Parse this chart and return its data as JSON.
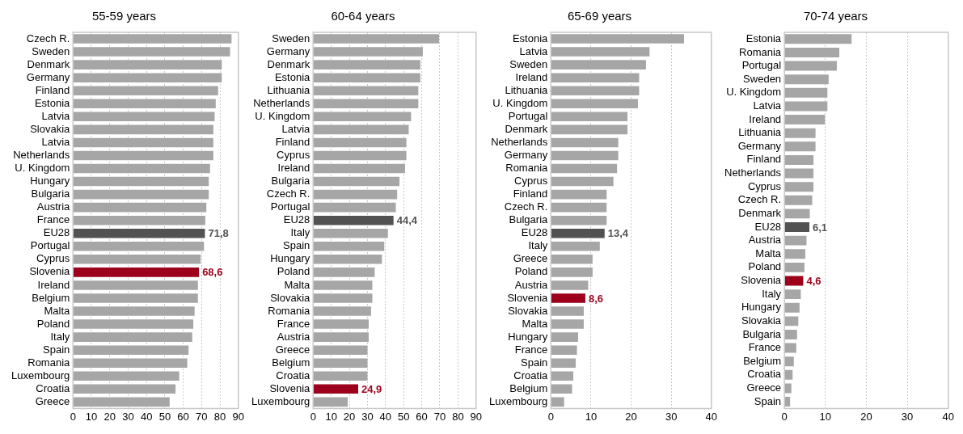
{
  "chart_data": [
    {
      "type": "bar",
      "orientation": "horizontal",
      "title": "55-59 years",
      "grid": "x",
      "xlim": [
        0,
        90
      ],
      "xticks": [
        0,
        10,
        20,
        30,
        40,
        50,
        60,
        70,
        80,
        90
      ],
      "categories": [
        "Czech R.",
        "Sweden",
        "Denmark",
        "Germany",
        "Finland",
        "Estonia",
        "Latvia",
        "Slovakia",
        "Latvia",
        "Netherlands",
        "U. Kingdom",
        "Hungary",
        "Bulgaria",
        "Austria",
        "France",
        "EU28",
        "Portugal",
        "Cyprus",
        "Slovenia",
        "Ireland",
        "Belgium",
        "Malta",
        "Poland",
        "Italy",
        "Spain",
        "Romania",
        "Luxembourg",
        "Croatia",
        "Greece"
      ],
      "values": [
        86.3,
        85.5,
        81.0,
        81.0,
        79.0,
        77.7,
        77.1,
        76.4,
        76.4,
        76.4,
        74.6,
        73.9,
        73.9,
        72.6,
        72.0,
        71.8,
        71.3,
        69.5,
        68.6,
        68.0,
        68.0,
        66.2,
        65.5,
        64.9,
        62.9,
        62.2,
        57.8,
        55.8,
        52.6
      ],
      "colors": [
        "#a6a6a6",
        "#a6a6a6",
        "#a6a6a6",
        "#a6a6a6",
        "#a6a6a6",
        "#a6a6a6",
        "#a6a6a6",
        "#a6a6a6",
        "#a6a6a6",
        "#a6a6a6",
        "#a6a6a6",
        "#a6a6a6",
        "#a6a6a6",
        "#a6a6a6",
        "#a6a6a6",
        "#525252",
        "#a6a6a6",
        "#a6a6a6",
        "#9c001a",
        "#a6a6a6",
        "#a6a6a6",
        "#a6a6a6",
        "#a6a6a6",
        "#a6a6a6",
        "#a6a6a6",
        "#a6a6a6",
        "#a6a6a6",
        "#a6a6a6",
        "#a6a6a6"
      ],
      "value_labels": [
        null,
        null,
        null,
        null,
        null,
        null,
        null,
        null,
        null,
        null,
        null,
        null,
        null,
        null,
        null,
        "71,8",
        null,
        null,
        "68,6",
        null,
        null,
        null,
        null,
        null,
        null,
        null,
        null,
        null,
        null
      ]
    },
    {
      "type": "bar",
      "orientation": "horizontal",
      "title": "60-64 years",
      "grid": "x",
      "xlim": [
        0,
        90
      ],
      "xticks": [
        0,
        10,
        20,
        30,
        40,
        50,
        60,
        70,
        80,
        90
      ],
      "categories": [
        "Sweden",
        "Germany",
        "Denmark",
        "Estonia",
        "Lithuania",
        "Netherlands",
        "U. Kingdom",
        "Latvia",
        "Finland",
        "Cyprus",
        "Ireland",
        "Bulgaria",
        "Czech R.",
        "Portugal",
        "EU28",
        "Italy",
        "Spain",
        "Hungary",
        "Poland",
        "Malta",
        "Slovakia",
        "Romania",
        "France",
        "Austria",
        "Greece",
        "Belgium",
        "Croatia",
        "Slovenia",
        "Luxembourg"
      ],
      "values": [
        69.6,
        60.6,
        59.2,
        59.2,
        58.1,
        58.1,
        54.1,
        52.8,
        51.5,
        51.5,
        50.8,
        47.7,
        46.4,
        45.7,
        44.4,
        41.3,
        39.3,
        38.0,
        34.0,
        32.7,
        32.7,
        32.0,
        30.7,
        30.7,
        30.0,
        30.0,
        30.0,
        24.9,
        19.1
      ],
      "colors": [
        "#a6a6a6",
        "#a6a6a6",
        "#a6a6a6",
        "#a6a6a6",
        "#a6a6a6",
        "#a6a6a6",
        "#a6a6a6",
        "#a6a6a6",
        "#a6a6a6",
        "#a6a6a6",
        "#a6a6a6",
        "#a6a6a6",
        "#a6a6a6",
        "#a6a6a6",
        "#525252",
        "#a6a6a6",
        "#a6a6a6",
        "#a6a6a6",
        "#a6a6a6",
        "#a6a6a6",
        "#a6a6a6",
        "#a6a6a6",
        "#a6a6a6",
        "#a6a6a6",
        "#a6a6a6",
        "#a6a6a6",
        "#a6a6a6",
        "#9c001a",
        "#a6a6a6"
      ],
      "value_labels": [
        null,
        null,
        null,
        null,
        null,
        null,
        null,
        null,
        null,
        null,
        null,
        null,
        null,
        null,
        "44,4",
        null,
        null,
        null,
        null,
        null,
        null,
        null,
        null,
        null,
        null,
        null,
        null,
        "24,9",
        null
      ]
    },
    {
      "type": "bar",
      "orientation": "horizontal",
      "title": "65-69 years",
      "grid": "x",
      "xlim": [
        0,
        40
      ],
      "xticks": [
        0,
        10,
        20,
        30,
        40
      ],
      "categories": [
        "Estonia",
        "Latvia",
        "Sweden",
        "Ireland",
        "Lithuania",
        "U. Kingdom",
        "Portugal",
        "Denmark",
        "Netherlands",
        "Germany",
        "Romania",
        "Cyprus",
        "Finland",
        "Czech R.",
        "Bulgaria",
        "EU28",
        "Italy",
        "Greece",
        "Poland",
        "Austria",
        "Slovenia",
        "Slovakia",
        "Malta",
        "Hungary",
        "France",
        "Spain",
        "Croatia",
        "Belgium",
        "Luxembourg"
      ],
      "values": [
        33.2,
        24.6,
        23.7,
        22.0,
        22.0,
        21.7,
        19.1,
        19.1,
        16.8,
        16.8,
        16.5,
        15.6,
        13.9,
        13.9,
        13.9,
        13.4,
        12.2,
        10.4,
        10.4,
        9.3,
        8.6,
        8.2,
        8.2,
        6.8,
        6.5,
        6.2,
        5.6,
        5.3,
        3.3
      ],
      "colors": [
        "#a6a6a6",
        "#a6a6a6",
        "#a6a6a6",
        "#a6a6a6",
        "#a6a6a6",
        "#a6a6a6",
        "#a6a6a6",
        "#a6a6a6",
        "#a6a6a6",
        "#a6a6a6",
        "#a6a6a6",
        "#a6a6a6",
        "#a6a6a6",
        "#a6a6a6",
        "#a6a6a6",
        "#525252",
        "#a6a6a6",
        "#a6a6a6",
        "#a6a6a6",
        "#a6a6a6",
        "#9c001a",
        "#a6a6a6",
        "#a6a6a6",
        "#a6a6a6",
        "#a6a6a6",
        "#a6a6a6",
        "#a6a6a6",
        "#a6a6a6",
        "#a6a6a6"
      ],
      "value_labels": [
        null,
        null,
        null,
        null,
        null,
        null,
        null,
        null,
        null,
        null,
        null,
        null,
        null,
        null,
        null,
        "13,4",
        null,
        null,
        null,
        null,
        "8,6",
        null,
        null,
        null,
        null,
        null,
        null,
        null,
        null
      ]
    },
    {
      "type": "bar",
      "orientation": "horizontal",
      "title": "70-74 years",
      "grid": "x",
      "xlim": [
        0,
        40
      ],
      "xticks": [
        0,
        10,
        20,
        30,
        40
      ],
      "categories": [
        "Estonia",
        "Romania",
        "Portugal",
        "Sweden",
        "U. Kingdom",
        "Latvia",
        "Ireland",
        "Lithuania",
        "Germany",
        "Finland",
        "Netherlands",
        "Cyprus",
        "Czech R.",
        "Denmark",
        "EU28",
        "Austria",
        "Malta",
        "Poland",
        "Slovenia",
        "Italy",
        "Hungary",
        "Slovakia",
        "Bulgaria",
        "France",
        "Belgium",
        "Croatia",
        "Greece",
        "Spain"
      ],
      "values": [
        16.4,
        13.4,
        12.8,
        10.8,
        10.5,
        10.5,
        9.9,
        7.6,
        7.6,
        7.1,
        7.1,
        7.1,
        6.8,
        6.2,
        6.1,
        5.4,
        5.1,
        4.9,
        4.6,
        4.0,
        3.7,
        3.4,
        3.1,
        2.9,
        2.3,
        2.0,
        1.7,
        1.4
      ],
      "colors": [
        "#a6a6a6",
        "#a6a6a6",
        "#a6a6a6",
        "#a6a6a6",
        "#a6a6a6",
        "#a6a6a6",
        "#a6a6a6",
        "#a6a6a6",
        "#a6a6a6",
        "#a6a6a6",
        "#a6a6a6",
        "#a6a6a6",
        "#a6a6a6",
        "#a6a6a6",
        "#525252",
        "#a6a6a6",
        "#a6a6a6",
        "#a6a6a6",
        "#9c001a",
        "#a6a6a6",
        "#a6a6a6",
        "#a6a6a6",
        "#a6a6a6",
        "#a6a6a6",
        "#a6a6a6",
        "#a6a6a6",
        "#a6a6a6",
        "#a6a6a6"
      ],
      "value_labels": [
        null,
        null,
        null,
        null,
        null,
        null,
        null,
        null,
        null,
        null,
        null,
        null,
        null,
        null,
        "6,1",
        null,
        null,
        null,
        "4,6",
        null,
        null,
        null,
        null,
        null,
        null,
        null,
        null,
        null
      ]
    }
  ]
}
